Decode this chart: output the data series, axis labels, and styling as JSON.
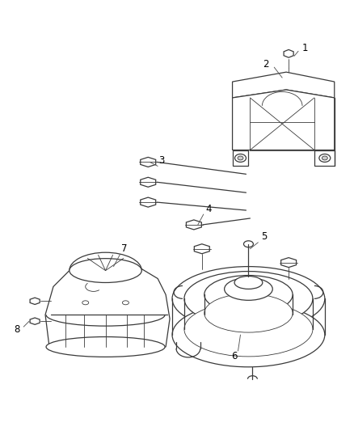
{
  "background_color": "#ffffff",
  "line_color": "#3a3a3a",
  "text_color": "#000000",
  "label_fontsize": 8.5,
  "fig_width": 4.38,
  "fig_height": 5.33,
  "dpi": 100
}
